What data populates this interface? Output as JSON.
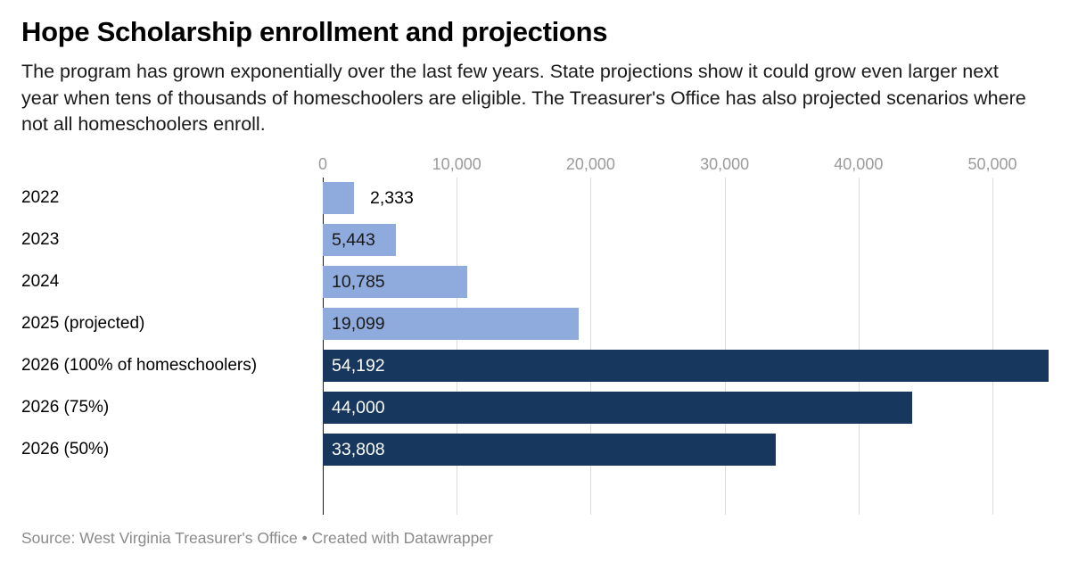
{
  "header": {
    "title": "Hope Scholarship enrollment and projections",
    "description": "The program has grown exponentially over the last few years. State projections show it could grow even larger next year when tens of thousands of homeschoolers are eligible. The Treasurer's Office has also projected scenarios where not all homeschoolers enroll."
  },
  "chart_data": {
    "type": "bar",
    "orientation": "horizontal",
    "title": "Hope Scholarship enrollment and projections",
    "categories": [
      "2022",
      "2023",
      "2024",
      "2025 (projected)",
      "2026 (100% of homeschoolers)",
      "2026 (75%)",
      "2026 (50%)"
    ],
    "values": [
      2333,
      5443,
      10785,
      19099,
      54192,
      44000,
      33808
    ],
    "value_labels": [
      "2,333",
      "5,443",
      "10,785",
      "19,099",
      "54,192",
      "44,000",
      "33,808"
    ],
    "bar_colors": [
      "#8faadc",
      "#8faadc",
      "#8faadc",
      "#8faadc",
      "#17375e",
      "#17375e",
      "#17375e"
    ],
    "xlim": [
      0,
      54192
    ],
    "x_ticks": [
      0,
      10000,
      20000,
      30000,
      40000,
      50000
    ],
    "x_tick_labels": [
      "0",
      "10,000",
      "20,000",
      "30,000",
      "40,000",
      "50,000"
    ],
    "grid": true,
    "legend": false,
    "xlabel": "",
    "ylabel": ""
  },
  "colors": {
    "light_bar": "#8faadc",
    "dark_bar": "#17375e",
    "gridline": "#dcdcdc",
    "zero_line": "#1a1a1a",
    "tick_text": "#9b9b9b",
    "label_on_light": "#1a1a1a",
    "label_on_dark": "#ffffff"
  },
  "footer": {
    "text": "Source: West Virginia Treasurer's Office • Created with Datawrapper"
  }
}
